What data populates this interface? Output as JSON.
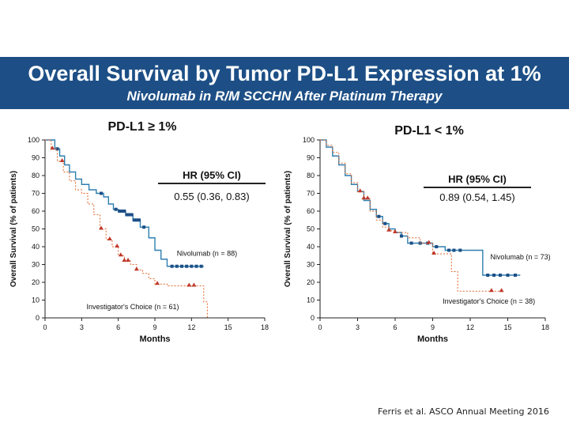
{
  "header": {
    "title": "Overall Survival by Tumor PD-L1 Expression at 1%",
    "subtitle": "Nivolumab in R/M SCCHN After Platinum Therapy"
  },
  "citation": "Ferris et al. ASCO Annual Meeting 2016",
  "colors": {
    "banner": "#1d4f86",
    "nivolumab": "#2f7fb0",
    "nivolumab_marker": "#1d4f86",
    "investigator": "#e0662a",
    "investigator_marker": "#c0392b"
  },
  "chart_data": [
    {
      "type": "line",
      "title": "PD-L1 ≥ 1%",
      "xlabel": "Months",
      "ylabel": "Overall Survival (% of patients)",
      "xlim": [
        0,
        18
      ],
      "ylim": [
        0,
        100
      ],
      "x_ticks": [
        "0",
        "3",
        "6",
        "9",
        "12",
        "15",
        "18"
      ],
      "y_ticks": [
        "0",
        "10",
        "20",
        "30",
        "40",
        "50",
        "60",
        "70",
        "80",
        "90",
        "100"
      ],
      "hr_header": "HR (95% CI)",
      "hr_value": "0.55 (0.36, 0.83)",
      "series": [
        {
          "name": "Nivolumab (n = 88)",
          "style": "solid",
          "x": [
            0,
            0.8,
            1.2,
            1.6,
            2.0,
            2.5,
            3.0,
            3.6,
            4.2,
            4.8,
            5.2,
            5.6,
            6.0,
            6.6,
            7.2,
            7.8,
            8.5,
            9.0,
            9.5,
            10.0,
            12.0,
            13.0
          ],
          "y": [
            100,
            95,
            91,
            86,
            82,
            78,
            75,
            72,
            70,
            68,
            64,
            61,
            60,
            58,
            55,
            51,
            45,
            38,
            33,
            29,
            29,
            29
          ],
          "censor_x": [
            1.0,
            4.6,
            5.8,
            6.1,
            6.3,
            6.5,
            6.7,
            6.9,
            7.1,
            7.3,
            7.5,
            7.7,
            8.1,
            10.4,
            10.8,
            11.2,
            11.6,
            12.0,
            12.4,
            12.8
          ],
          "label_x": 10.8,
          "label_y": 35
        },
        {
          "name": "Investigator's Choice (n = 61)",
          "style": "dashed",
          "x": [
            0,
            0.5,
            1.0,
            1.5,
            2.0,
            2.5,
            3.0,
            3.5,
            4.0,
            4.5,
            5.0,
            5.5,
            6.0,
            6.5,
            7.0,
            7.5,
            8.0,
            8.5,
            9.0,
            10.0,
            12.0,
            13.0,
            13.3
          ],
          "y": [
            100,
            95,
            88,
            82,
            77,
            72,
            70,
            64,
            58,
            50,
            44,
            40,
            35,
            32,
            30,
            27,
            25,
            22,
            19,
            18,
            18,
            9,
            0
          ],
          "censor_x": [
            0.6,
            1.4,
            4.6,
            5.3,
            5.9,
            6.2,
            6.5,
            6.8,
            7.5,
            9.2,
            11.8,
            12.2
          ],
          "label_x": 3.4,
          "label_y": 5
        }
      ]
    },
    {
      "type": "line",
      "title": "PD-L1 < 1%",
      "xlabel": "Months",
      "ylabel": "Overall Survival (% of patients)",
      "xlim": [
        0,
        18
      ],
      "ylim": [
        0,
        100
      ],
      "x_ticks": [
        "0",
        "3",
        "6",
        "9",
        "12",
        "15",
        "18"
      ],
      "y_ticks": [
        "0",
        "10",
        "20",
        "30",
        "40",
        "50",
        "60",
        "70",
        "80",
        "90",
        "100"
      ],
      "hr_header": "HR (95% CI)",
      "hr_value": "0.89 (0.54, 1.45)",
      "series": [
        {
          "name": "Nivolumab (n = 73)",
          "style": "solid",
          "x": [
            0,
            0.5,
            1.0,
            1.5,
            2.0,
            2.5,
            3.0,
            3.5,
            4.0,
            4.5,
            5.0,
            5.5,
            6.0,
            6.5,
            7.0,
            7.5,
            8.0,
            9.0,
            10.0,
            12.0,
            13.0,
            14.0,
            16.0
          ],
          "y": [
            100,
            96,
            91,
            86,
            80,
            75,
            71,
            66,
            61,
            57,
            53,
            50,
            48,
            46,
            42,
            42,
            42,
            40,
            38,
            38,
            24,
            24,
            24
          ],
          "censor_x": [
            4.7,
            5.2,
            6.5,
            7.3,
            8.0,
            8.6,
            9.3,
            10.3,
            10.7,
            11.2,
            13.4,
            13.9,
            14.4,
            15.0,
            15.6
          ],
          "label_x": 13.6,
          "label_y": 33
        },
        {
          "name": "Investigator's Choice (n = 38)",
          "style": "dashed",
          "x": [
            0,
            0.5,
            1.0,
            1.5,
            2.0,
            2.5,
            3.0,
            3.5,
            4.0,
            4.5,
            5.0,
            5.5,
            6.0,
            7.0,
            8.0,
            9.0,
            10.0,
            10.5,
            11.0,
            12.0,
            13.0,
            14.5
          ],
          "y": [
            100,
            97,
            93,
            87,
            81,
            76,
            71,
            67,
            60,
            55,
            51,
            49,
            48,
            45,
            42,
            36,
            36,
            26,
            15,
            15,
            15,
            15
          ],
          "censor_x": [
            3.2,
            3.5,
            3.8,
            5.5,
            6.0,
            8.7,
            9.1,
            13.7,
            14.5
          ],
          "label_x": 9.8,
          "label_y": 8
        }
      ]
    }
  ]
}
